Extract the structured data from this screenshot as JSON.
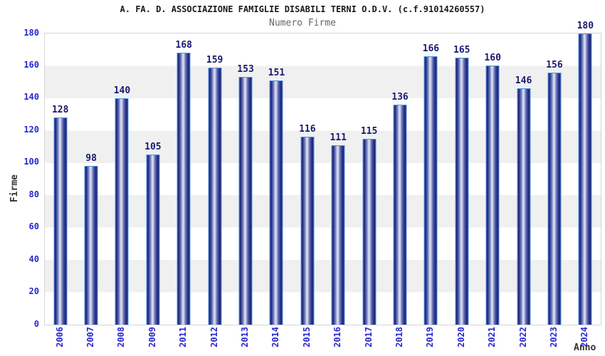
{
  "chart_data": {
    "type": "bar",
    "title": "A. FA. D. ASSOCIAZIONE FAMIGLIE DISABILI TERNI O.D.V. (c.f.91014260557)",
    "subtitle": "Numero Firme",
    "xlabel": "Anno",
    "ylabel": "Firme",
    "categories": [
      "2006",
      "2007",
      "2008",
      "2009",
      "2011",
      "2012",
      "2013",
      "2014",
      "2015",
      "2016",
      "2017",
      "2018",
      "2019",
      "2020",
      "2021",
      "2022",
      "2023",
      "2024"
    ],
    "values": [
      128,
      98,
      140,
      105,
      168,
      159,
      153,
      151,
      116,
      111,
      115,
      136,
      166,
      165,
      160,
      146,
      156,
      180
    ],
    "ylim": [
      0,
      180
    ],
    "ytick_step": 20,
    "yticks": [
      0,
      20,
      40,
      60,
      80,
      100,
      120,
      140,
      160,
      180
    ],
    "grid": "alternating-horizontal-bands",
    "legend_position": "none",
    "bar_value_labels_shown": true,
    "colors": {
      "bar_dark": "#1d2472",
      "bar_light": "#e2e5f3",
      "bar_border": "#4f94e4",
      "tick_label": "#2626cf",
      "value_label": "#191970",
      "band_gray": "#f0f0f0",
      "plot_border": "#d6d6d6",
      "title": "#1a1a1a",
      "subtitle": "#666666",
      "axis_title": "#333333",
      "background": "#ffffff"
    }
  }
}
